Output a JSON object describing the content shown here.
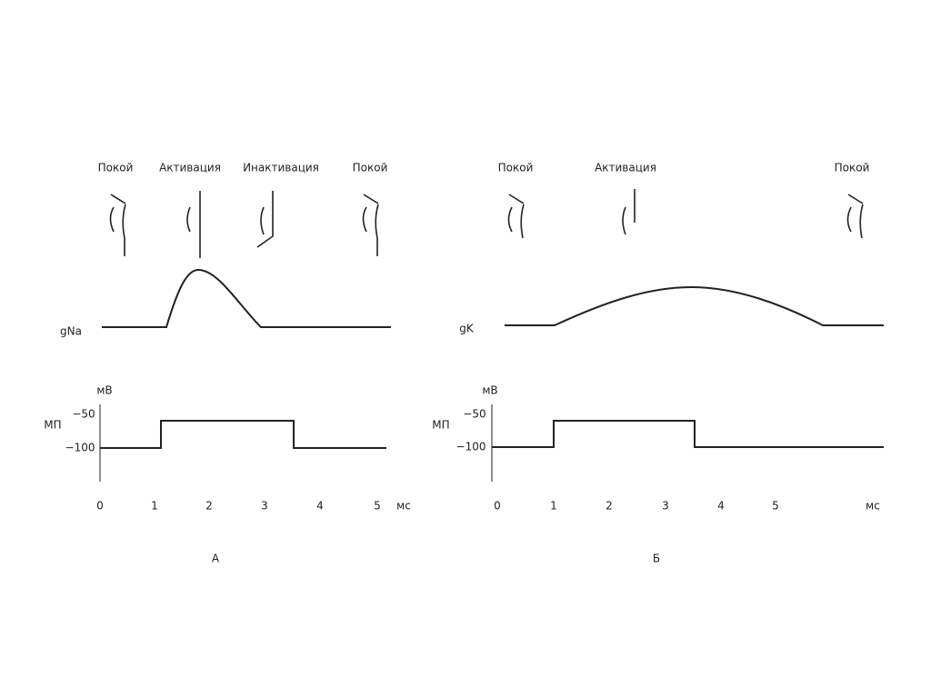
{
  "panels": [
    {
      "states": [
        "Покой",
        "Активация",
        "Инактивация",
        "Покой"
      ],
      "conductance_label": "gNa",
      "voltage_unit": "мВ",
      "voltage_label": "МП",
      "voltage_ticks": [
        "−50",
        "−100"
      ],
      "time_ticks": [
        "0",
        "1",
        "2",
        "3",
        "4",
        "5"
      ],
      "time_unit": "мс",
      "letter": "А"
    },
    {
      "states": [
        "Покой",
        "Активация",
        "Покой"
      ],
      "conductance_label": "gK",
      "voltage_unit": "мВ",
      "voltage_label": "МП",
      "voltage_ticks": [
        "−50",
        "−100"
      ],
      "time_ticks": [
        "0",
        "1",
        "2",
        "3",
        "4",
        "5"
      ],
      "time_unit": "мс",
      "letter": "Б"
    }
  ]
}
